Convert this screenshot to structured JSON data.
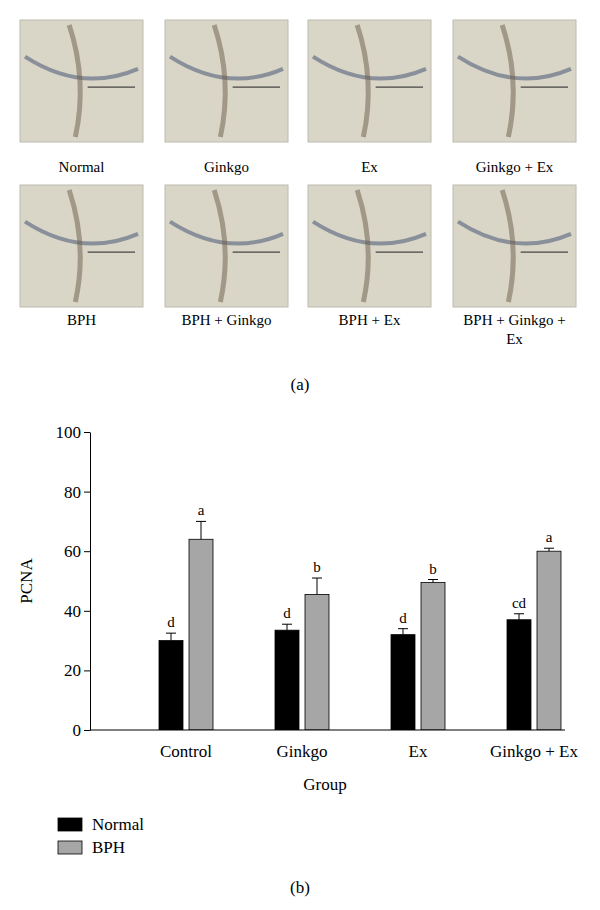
{
  "figure": {
    "panel_a_label": "(a)",
    "panel_b_label": "(b)",
    "micrographs": [
      {
        "label": [
          "Normal"
        ]
      },
      {
        "label": [
          "Ginkgo"
        ]
      },
      {
        "label": [
          "Ex"
        ]
      },
      {
        "label": [
          "Ginkgo + Ex"
        ]
      },
      {
        "label": [
          "BPH"
        ]
      },
      {
        "label": [
          "BPH + Ginkgo"
        ]
      },
      {
        "label": [
          "BPH + Ex"
        ]
      },
      {
        "label": [
          "BPH + Ginkgo +",
          "Ex"
        ]
      }
    ]
  },
  "chart_data": {
    "type": "bar",
    "x_label": "Group",
    "y_label": "PCNA",
    "categories": [
      "Control",
      "Ginkgo",
      "Ex",
      "Ginkgo + Ex"
    ],
    "series": [
      {
        "name": "Normal",
        "color": "#000000",
        "values": [
          30,
          33.5,
          32,
          37
        ],
        "errors": [
          2.5,
          2,
          2,
          2
        ],
        "annotations": [
          "d",
          "d",
          "d",
          "cd"
        ]
      },
      {
        "name": "BPH",
        "color": "#a6a6a6",
        "values": [
          64,
          45.5,
          49.5,
          60
        ],
        "errors": [
          6,
          5.5,
          1,
          1
        ],
        "annotations": [
          "a",
          "b",
          "b",
          "a"
        ]
      }
    ],
    "ylim": [
      0,
      100
    ],
    "yticks": [
      0,
      20,
      40,
      60,
      80,
      100
    ],
    "grid": false,
    "legend": "bottom-left"
  }
}
